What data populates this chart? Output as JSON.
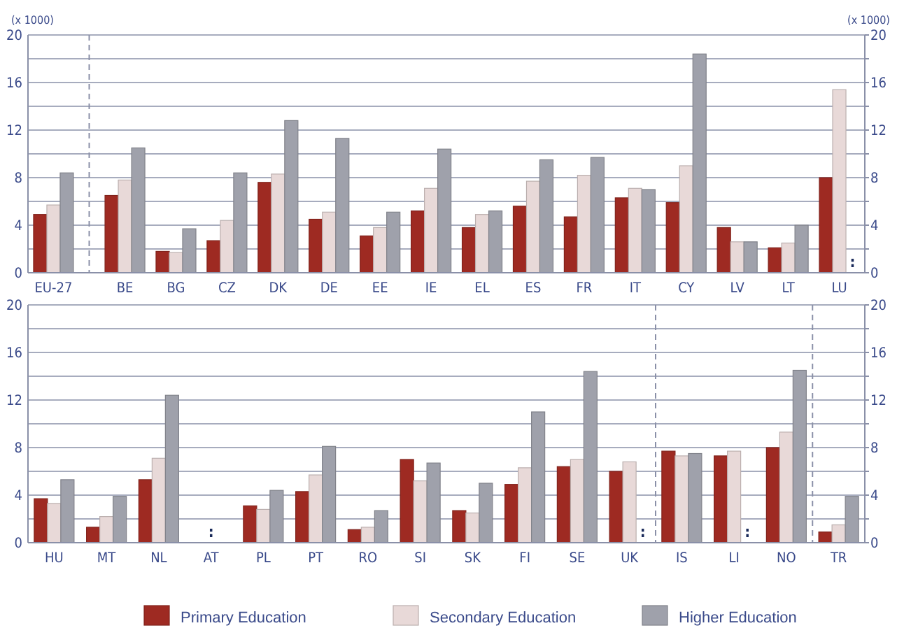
{
  "chart_data": [
    {
      "type": "bar",
      "ylabel": "(x 1000)",
      "y2label": "(x 1000)",
      "categories": [
        "EU-27",
        "BE",
        "BG",
        "CZ",
        "DK",
        "DE",
        "EE",
        "IE",
        "EL",
        "ES",
        "FR",
        "IT",
        "CY",
        "LV",
        "LT",
        "LU"
      ],
      "series": [
        {
          "color": "#9e2a22",
          "values": [
            4.9,
            6.5,
            1.8,
            2.7,
            7.6,
            4.5,
            3.1,
            5.2,
            3.8,
            5.6,
            4.7,
            6.3,
            5.9,
            3.8,
            2.1,
            8.0
          ]
        },
        {
          "color": "#e8d9d8",
          "values": [
            5.7,
            7.8,
            1.7,
            4.4,
            8.3,
            5.1,
            3.8,
            7.1,
            4.9,
            7.7,
            8.2,
            7.1,
            9.0,
            2.6,
            2.5,
            15.4
          ]
        },
        {
          "color": "#9fa1ab",
          "values": [
            8.4,
            10.5,
            3.7,
            8.4,
            12.8,
            11.3,
            5.1,
            10.4,
            5.2,
            9.5,
            9.7,
            7.0,
            18.4,
            2.6,
            4.0,
            null
          ]
        }
      ],
      "ylim": [
        0,
        20
      ],
      "yticks": [
        0,
        {
          "value": 2,
          "label": null
        },
        4,
        {
          "value": 6,
          "label": null
        },
        8,
        {
          "value": 10,
          "label": null
        },
        12,
        {
          "value": 14,
          "label": null
        },
        16,
        {
          "value": 18,
          "label": null
        },
        20
      ],
      "y2lim": [
        0,
        20
      ],
      "y2ticks": [
        0,
        {
          "value": 2,
          "label": null
        },
        4,
        {
          "value": 6,
          "label": null
        },
        8,
        {
          "value": 10,
          "label": null
        },
        12,
        {
          "value": 14,
          "label": null
        },
        16,
        {
          "value": 18,
          "label": null
        },
        20
      ],
      "grid": "y",
      "legend": false,
      "annotations": [
        ":"
      ]
    },
    {
      "type": "bar",
      "categories": [
        "HU",
        "MT",
        "NL",
        "AT",
        "PL",
        "PT",
        "RO",
        "SI",
        "SK",
        "FI",
        "SE",
        "UK",
        "IS",
        "LI",
        "NO",
        "TR"
      ],
      "series": [
        {
          "name": "Primary Education",
          "color": "#9e2a22",
          "values": [
            3.7,
            1.3,
            5.3,
            null,
            3.1,
            4.3,
            1.1,
            7.0,
            2.7,
            4.9,
            6.4,
            6.0,
            7.7,
            7.3,
            8.0,
            0.9
          ]
        },
        {
          "name": "Secondary Education",
          "color": "#e8d9d8",
          "values": [
            3.3,
            2.2,
            7.1,
            null,
            2.8,
            5.7,
            1.3,
            5.2,
            2.5,
            6.3,
            7.0,
            6.8,
            7.3,
            7.7,
            9.3,
            1.5
          ]
        },
        {
          "name": "Higher Education",
          "color": "#9fa1ab",
          "values": [
            5.3,
            3.9,
            12.4,
            null,
            4.4,
            8.1,
            2.7,
            6.7,
            5.0,
            11.0,
            14.4,
            null,
            7.5,
            null,
            14.5,
            3.9
          ]
        }
      ],
      "ylim": [
        0,
        20
      ],
      "yticks": [
        0,
        {
          "value": 2,
          "label": null
        },
        4,
        {
          "value": 6,
          "label": null
        },
        8,
        {
          "value": 10,
          "label": null
        },
        12,
        {
          "value": 14,
          "label": null
        },
        16,
        {
          "value": 18,
          "label": null
        },
        20
      ],
      "y2lim": [
        0,
        20
      ],
      "y2ticks": [
        0,
        {
          "value": 2,
          "label": null
        },
        4,
        {
          "value": 6,
          "label": null
        },
        8,
        {
          "value": 10,
          "label": null
        },
        12,
        {
          "value": 14,
          "label": null
        },
        16,
        {
          "value": 18,
          "label": null
        },
        20
      ],
      "grid": "y",
      "legend": "bottom",
      "annotations": [
        ":",
        ":",
        ":"
      ]
    }
  ]
}
